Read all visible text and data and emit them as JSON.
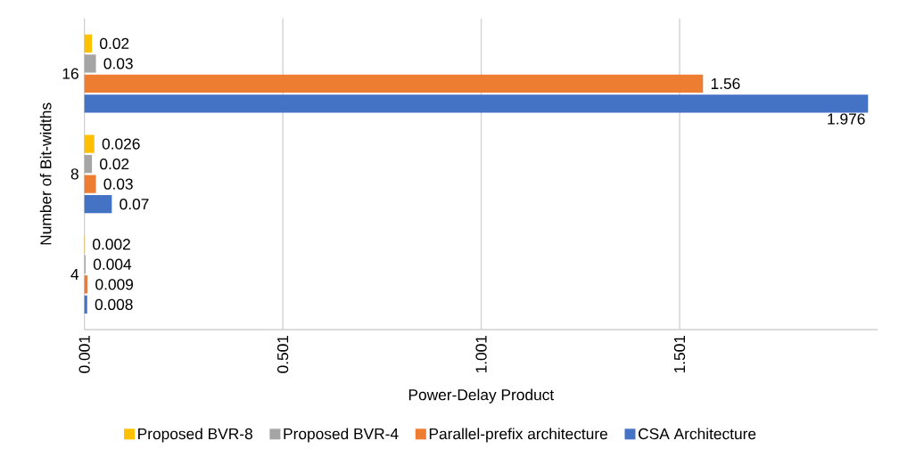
{
  "chart_data": {
    "type": "bar",
    "orientation": "horizontal",
    "xlabel": "Power-Delay Product",
    "ylabel": "Number of Bit-widths",
    "categories": [
      "16",
      "8",
      "4"
    ],
    "series": [
      {
        "name": "Proposed BVR-8",
        "color": "#ffc000",
        "values": [
          0.02,
          0.026,
          0.002
        ]
      },
      {
        "name": "Proposed BVR-4",
        "color": "#a5a5a5",
        "values": [
          0.03,
          0.02,
          0.004
        ]
      },
      {
        "name": "Parallel-prefix architecture",
        "color": "#ed7d31",
        "values": [
          1.56,
          0.03,
          0.009
        ]
      },
      {
        "name": "CSA Architecture",
        "color": "#4472c4",
        "values": [
          1.976,
          0.07,
          0.008
        ]
      }
    ],
    "xlim": [
      0.001,
      2.0
    ],
    "xticks": [
      0.001,
      0.501,
      1.001,
      1.501
    ],
    "grid": "x",
    "legend": "bottom",
    "data_labels": true
  }
}
